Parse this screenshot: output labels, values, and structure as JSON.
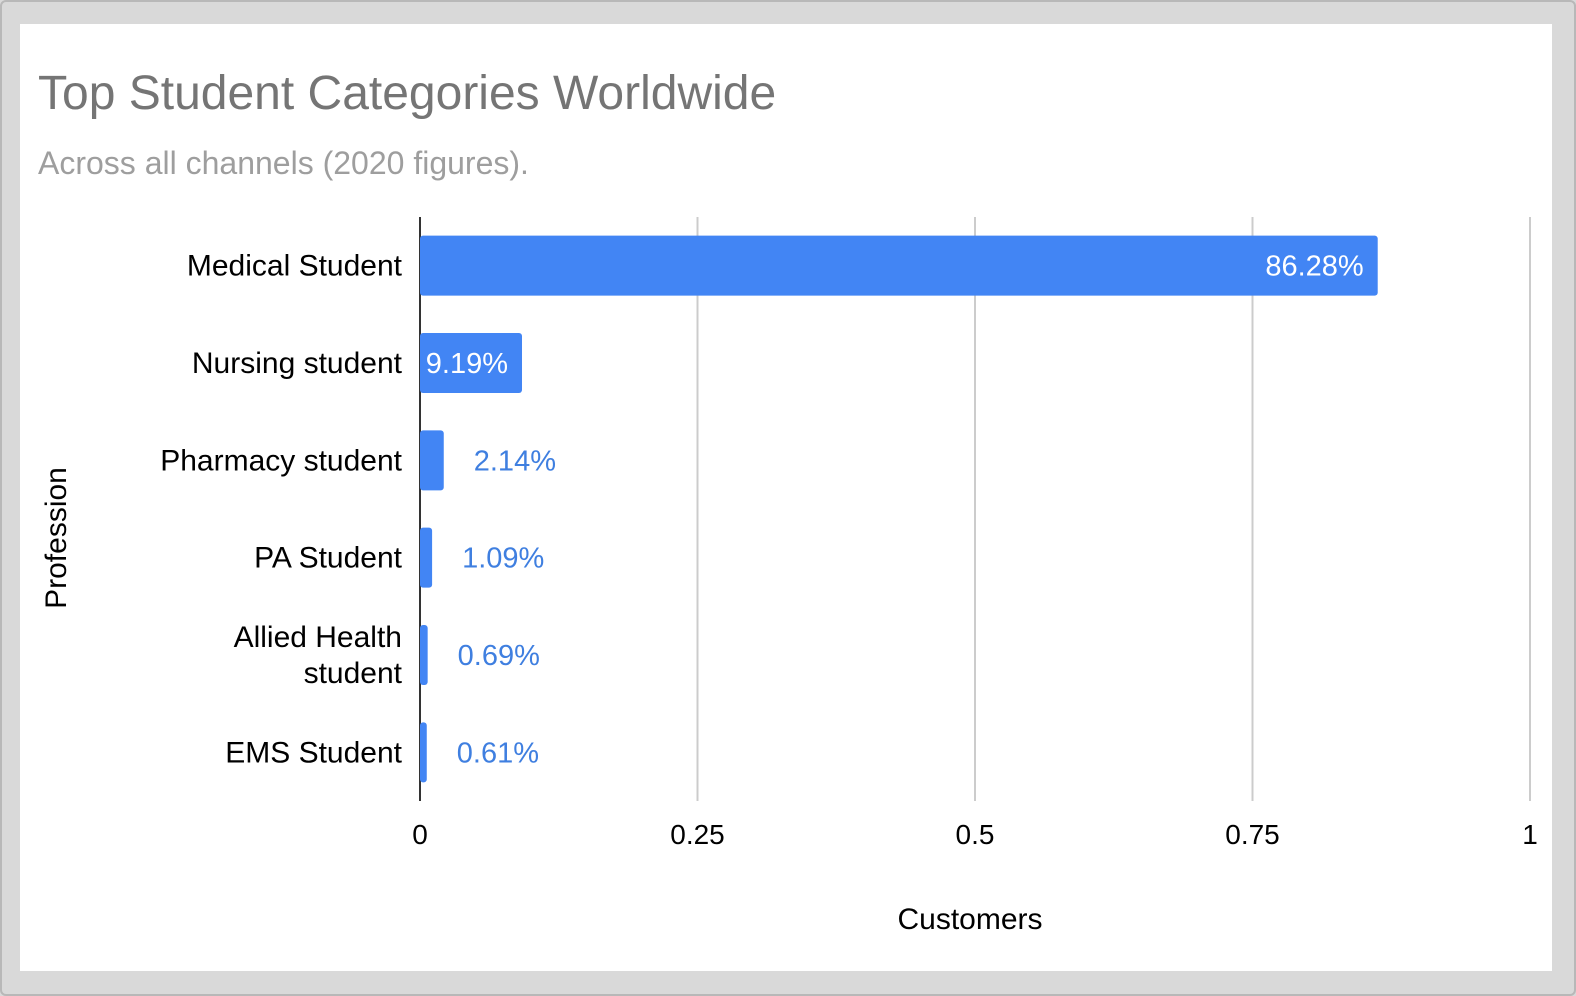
{
  "chart_data": {
    "type": "bar",
    "orientation": "horizontal",
    "title": "Top Student Categories Worldwide",
    "subtitle": "Across all channels (2020 figures).",
    "xlabel": "Customers",
    "ylabel": "Profession",
    "xlim": [
      0,
      1
    ],
    "x_ticks": [
      "0",
      "0.25",
      "0.5",
      "0.75",
      "1"
    ],
    "grid": true,
    "legend": "none",
    "bar_color": "#4285f4",
    "categories": [
      [
        "Medical Student"
      ],
      [
        "Nursing student"
      ],
      [
        "Pharmacy student"
      ],
      [
        "PA Student"
      ],
      [
        "Allied Health",
        "student"
      ],
      [
        "EMS Student"
      ]
    ],
    "values": [
      0.8628,
      0.0919,
      0.0214,
      0.0109,
      0.0069,
      0.0061
    ],
    "data_labels": [
      "86.28%",
      "9.19%",
      "2.14%",
      "1.09%",
      "0.69%",
      "0.61%"
    ]
  }
}
